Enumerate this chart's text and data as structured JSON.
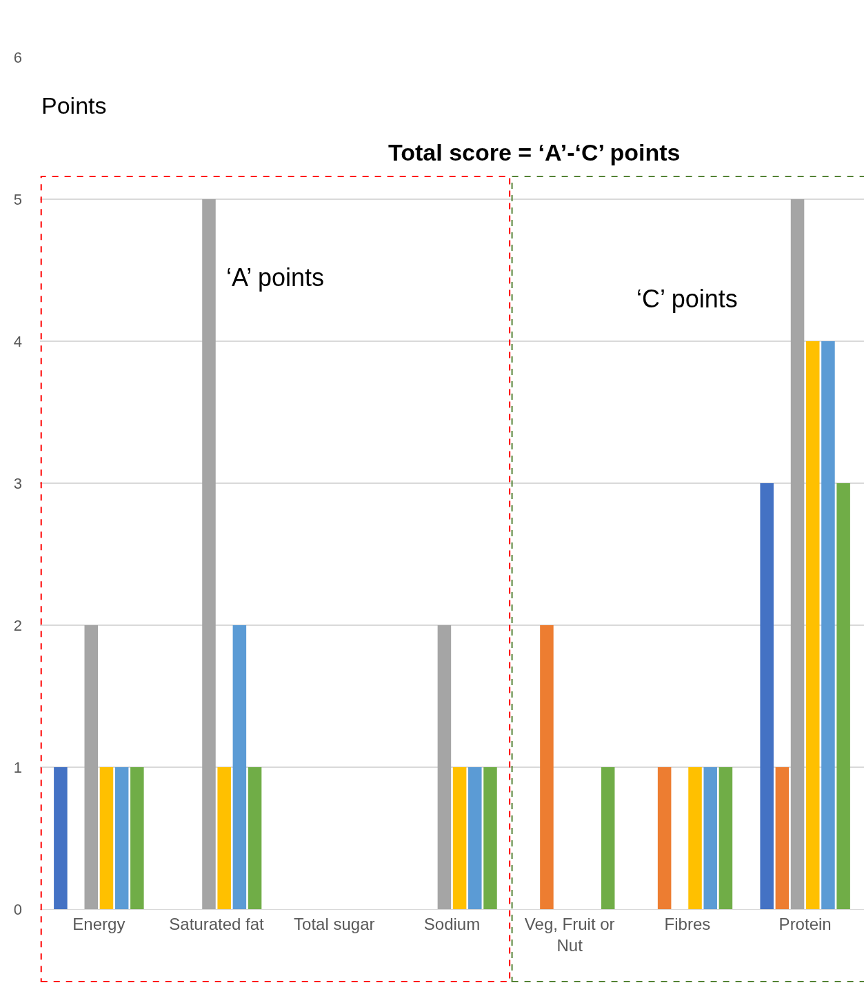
{
  "chart_data": {
    "type": "bar",
    "title": "Total score = ‘A’-‘C’ points",
    "ylabel": "Points",
    "categories": [
      "Energy",
      "Saturated fat",
      "Total sugar",
      "Sodium",
      "Veg, Fruit or Nut",
      "Fibres",
      "Protein"
    ],
    "series": [
      {
        "color": "#4472c4",
        "values": [
          1,
          0,
          0,
          0,
          0,
          0,
          3
        ]
      },
      {
        "color": "#ed7d31",
        "values": [
          0,
          0,
          0,
          0,
          2,
          1,
          1
        ]
      },
      {
        "color": "#a5a5a5",
        "values": [
          2,
          5,
          0,
          2,
          0,
          0,
          5
        ]
      },
      {
        "color": "#ffc000",
        "values": [
          1,
          1,
          0,
          1,
          0,
          1,
          4
        ]
      },
      {
        "color": "#5b9bd5",
        "values": [
          1,
          2,
          0,
          1,
          0,
          1,
          4
        ]
      },
      {
        "color": "#70ad47",
        "values": [
          1,
          1,
          0,
          1,
          1,
          1,
          3
        ]
      }
    ],
    "ylim": [
      0,
      6
    ],
    "yticks": [
      0,
      1,
      2,
      3,
      4,
      5,
      6
    ],
    "grid": "y",
    "annotations": [
      "‘A’ points",
      "‘C’ points"
    ]
  }
}
